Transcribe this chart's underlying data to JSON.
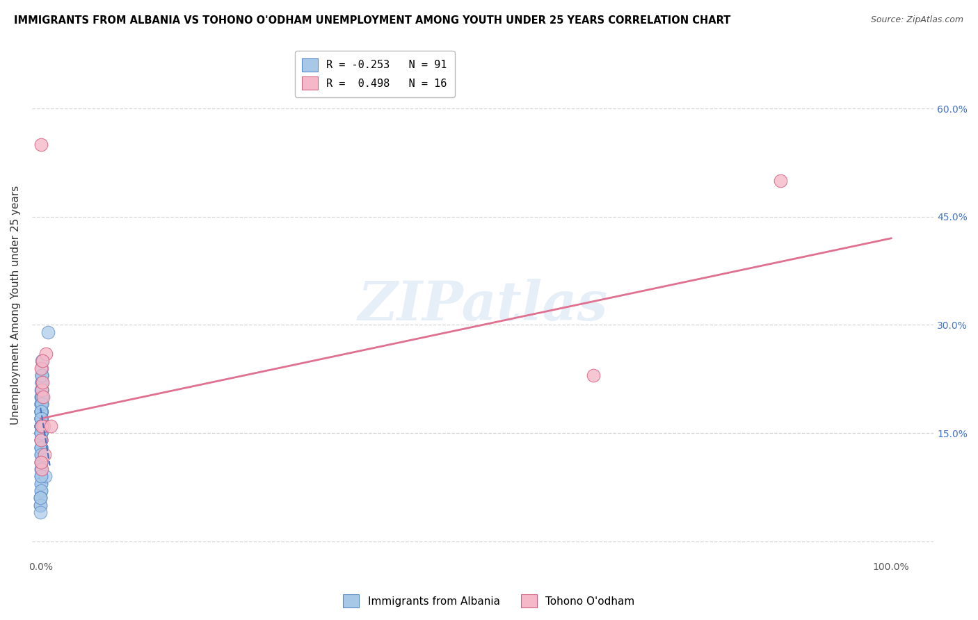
{
  "title": "IMMIGRANTS FROM ALBANIA VS TOHONO O'ODHAM UNEMPLOYMENT AMONG YOUTH UNDER 25 YEARS CORRELATION CHART",
  "source": "Source: ZipAtlas.com",
  "ylabel": "Unemployment Among Youth under 25 years",
  "x_tick_positions": [
    0.0,
    0.2,
    0.4,
    0.6,
    0.8,
    1.0
  ],
  "x_tick_labels": [
    "0.0%",
    "",
    "",
    "",
    "",
    "100.0%"
  ],
  "y_tick_positions": [
    0.0,
    0.15,
    0.3,
    0.45,
    0.6
  ],
  "y_tick_labels_right": [
    "",
    "15.0%",
    "30.0%",
    "45.0%",
    "60.0%"
  ],
  "legend_entries": [
    {
      "label": "R = -0.253   N = 91",
      "facecolor": "#a8c8e8",
      "edgecolor": "#5a8ac6"
    },
    {
      "label": "R =  0.498   N = 16",
      "facecolor": "#f4b8c8",
      "edgecolor": "#d46080"
    }
  ],
  "watermark": "ZIPatlas",
  "blue_facecolor": "#a8c8e8",
  "blue_edgecolor": "#5a8ac6",
  "pink_facecolor": "#f4b8c8",
  "pink_edgecolor": "#d46080",
  "blue_trend_color": "#4472c4",
  "pink_trend_color": "#e07090",
  "blue_scatter_x": [
    0.0008,
    0.0012,
    0.001,
    0.0015,
    0.0009,
    0.0011,
    0.0013,
    0.0007,
    0.001,
    0.0008,
    0.0012,
    0.0009,
    0.0014,
    0.0011,
    0.0008,
    0.0013,
    0.0016,
    0.001,
    0.0007,
    0.0012,
    0.0009,
    0.0008,
    0.0011,
    0.001,
    0.0007,
    0.0009,
    0.0012,
    0.0008,
    0.0015,
    0.001,
    0.0008,
    0.0013,
    0.0018,
    0.0009,
    0.0007,
    0.0012,
    0.0009,
    0.0008,
    0.0014,
    0.001,
    0.0007,
    0.0011,
    0.0009,
    0.0007,
    0.0012,
    0.0009,
    0.0008,
    0.0014,
    0.001,
    0.0007,
    0.0011,
    0.0009,
    0.0006,
    0.0012,
    0.0008,
    0.0007,
    0.0009,
    0.0011,
    0.0006,
    0.0008,
    0.001,
    0.0006,
    0.0008,
    0.001,
    0.0005,
    0.0007,
    0.0006,
    0.0009,
    0.0007,
    0.0005,
    0.0006,
    0.0004,
    0.0008,
    0.001,
    0.0005,
    0.0004,
    0.0007,
    0.0004,
    0.0003,
    0.009,
    0.0004,
    0.0002,
    0.0006,
    0.0003,
    0.0055,
    0.0002,
    0.0005,
    0.0002,
    0.0001,
    0.0002,
    0.0001
  ],
  "blue_scatter_y": [
    0.2,
    0.22,
    0.18,
    0.19,
    0.21,
    0.17,
    0.23,
    0.18,
    0.16,
    0.2,
    0.19,
    0.15,
    0.21,
    0.18,
    0.17,
    0.23,
    0.2,
    0.19,
    0.16,
    0.22,
    0.18,
    0.17,
    0.21,
    0.16,
    0.15,
    0.19,
    0.2,
    0.18,
    0.24,
    0.17,
    0.16,
    0.22,
    0.25,
    0.19,
    0.14,
    0.23,
    0.18,
    0.17,
    0.21,
    0.16,
    0.15,
    0.2,
    0.18,
    0.14,
    0.22,
    0.17,
    0.16,
    0.23,
    0.19,
    0.15,
    0.21,
    0.18,
    0.13,
    0.2,
    0.16,
    0.14,
    0.17,
    0.19,
    0.12,
    0.16,
    0.18,
    0.13,
    0.15,
    0.17,
    0.11,
    0.14,
    0.12,
    0.16,
    0.13,
    0.1,
    0.11,
    0.09,
    0.13,
    0.15,
    0.1,
    0.08,
    0.12,
    0.09,
    0.07,
    0.29,
    0.08,
    0.06,
    0.11,
    0.07,
    0.09,
    0.05,
    0.09,
    0.06,
    0.05,
    0.06,
    0.04
  ],
  "pink_scatter_x": [
    0.0008,
    0.0015,
    0.004,
    0.0009,
    0.002,
    0.0012,
    0.006,
    0.0035,
    0.0008,
    0.0025,
    0.012,
    0.005,
    0.0018,
    0.65,
    0.87,
    0.0008
  ],
  "pink_scatter_y": [
    0.55,
    0.21,
    0.16,
    0.24,
    0.22,
    0.16,
    0.26,
    0.2,
    0.14,
    0.25,
    0.16,
    0.12,
    0.1,
    0.23,
    0.5,
    0.11
  ],
  "pink_trend_x0": 0.0,
  "pink_trend_x1": 1.0,
  "pink_trend_y0": 0.17,
  "pink_trend_y1": 0.42,
  "blue_trend_x0": 0.0,
  "blue_trend_x1": 0.011,
  "blue_trend_y0": 0.185,
  "blue_trend_y1": 0.105,
  "xlim": [
    -0.01,
    1.05
  ],
  "ylim": [
    -0.025,
    0.68
  ]
}
